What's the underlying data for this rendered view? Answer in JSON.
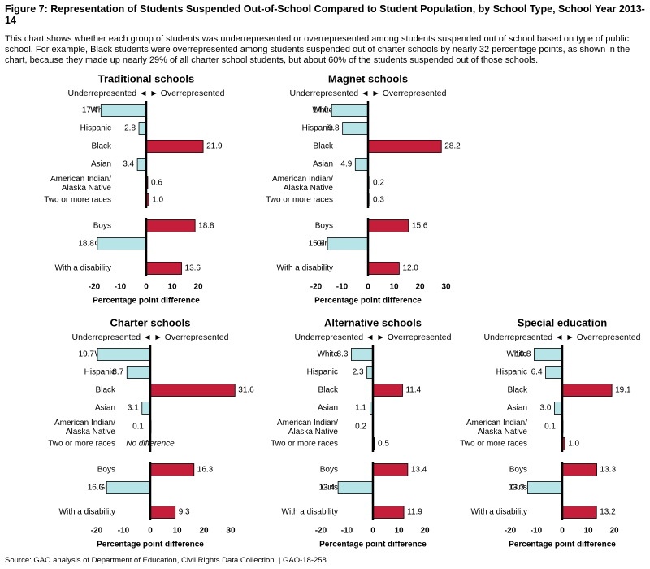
{
  "figure": {
    "title": "Figure 7: Representation of Students Suspended Out-of-School Compared to Student Population, by School Type, School Year 2013-14",
    "description": "This chart shows whether each group of students was underrepresented or overrepresented among students suspended out of school based on type of public school. For example, Black students were overrepresented among students suspended out of charter schools by nearly 32 percentage points, as shown in the chart, because they made up nearly 29% of all charter school students, but about 60% of the students suspended out of those schools.",
    "source": "Source: GAO analysis of Department of Education, Civil Rights Data Collection.  |  GAO-18-258",
    "direction_label": "Underrepresented ◄ ► Overrepresented",
    "colors": {
      "under": "#b7e4e6",
      "over": "#c41e3a",
      "border": "#000000"
    }
  },
  "chart_data": [
    {
      "type": "bar",
      "orientation": "horizontal",
      "title": "Traditional schools",
      "xlabel": "Percentage point difference",
      "xlim": [
        -20,
        20
      ],
      "xticks": [
        -20,
        -10,
        0,
        10,
        20
      ],
      "categories": [
        "White",
        "Hispanic",
        "Black",
        "Asian",
        "American Indian/\nAlaska Native",
        "Two or more races",
        "Boys",
        "Girls",
        "With a disability"
      ],
      "values": [
        -17.4,
        -2.8,
        21.9,
        -3.4,
        0.6,
        1.0,
        18.8,
        -18.8,
        13.6
      ],
      "labels": [
        "17.4",
        "2.8",
        "21.9",
        "3.4",
        "0.6",
        "1.0",
        "18.8",
        "18.8",
        "13.6"
      ]
    },
    {
      "type": "bar",
      "orientation": "horizontal",
      "title": "Magnet schools",
      "xlabel": "Percentage point difference",
      "xlim": [
        -20,
        30
      ],
      "xticks": [
        -20,
        -10,
        0,
        10,
        20,
        30
      ],
      "categories": [
        "White",
        "Hispanic",
        "Black",
        "Asian",
        "American Indian/\nAlaska Native",
        "Two or more races",
        "Boys",
        "Girls",
        "With a disability"
      ],
      "values": [
        -14.0,
        -9.8,
        28.2,
        -4.9,
        0.2,
        0.3,
        15.6,
        -15.6,
        12.0
      ],
      "labels": [
        "14.0",
        "9.8",
        "28.2",
        "4.9",
        "0.2",
        "0.3",
        "15.6",
        "15.6",
        "12.0"
      ]
    },
    {
      "type": "bar",
      "orientation": "horizontal",
      "title": "Charter schools",
      "xlabel": "Percentage point difference",
      "xlim": [
        -20,
        30
      ],
      "xticks": [
        -20,
        -10,
        0,
        10,
        20,
        30
      ],
      "categories": [
        "White",
        "Hispanic",
        "Black",
        "Asian",
        "American Indian/\nAlaska Native",
        "Two or more races",
        "Boys",
        "Girls",
        "With a disability"
      ],
      "values": [
        -19.7,
        -8.7,
        31.6,
        -3.1,
        -0.1,
        0,
        16.3,
        -16.3,
        9.3
      ],
      "labels": [
        "19.7",
        "8.7",
        "31.6",
        "3.1",
        "0.1",
        "No difference",
        "16.3",
        "16.3",
        "9.3"
      ]
    },
    {
      "type": "bar",
      "orientation": "horizontal",
      "title": "Alternative schools",
      "xlabel": "Percentage point difference",
      "xlim": [
        -20,
        20
      ],
      "xticks": [
        -20,
        -10,
        0,
        10,
        20
      ],
      "categories": [
        "White",
        "Hispanic",
        "Black",
        "Asian",
        "American Indian/\nAlaska Native",
        "Two or more races",
        "Boys",
        "Girls",
        "With a disability"
      ],
      "values": [
        -8.3,
        -2.3,
        11.4,
        -1.1,
        -0.2,
        0.5,
        13.4,
        -13.4,
        11.9
      ],
      "labels": [
        "8.3",
        "2.3",
        "11.4",
        "1.1",
        "0.2",
        "0.5",
        "13.4",
        "13.4",
        "11.9"
      ]
    },
    {
      "type": "bar",
      "orientation": "horizontal",
      "title": "Special education",
      "xlabel": "Percentage point difference",
      "xlim": [
        -20,
        20
      ],
      "xticks": [
        -20,
        -10,
        0,
        10,
        20
      ],
      "categories": [
        "White",
        "Hispanic",
        "Black",
        "Asian",
        "American Indian/\nAlaska Native",
        "Two or more races",
        "Boys",
        "Girls",
        "With a disability"
      ],
      "values": [
        -10.8,
        -6.4,
        19.1,
        -3.0,
        -0.1,
        1.0,
        13.3,
        -13.3,
        13.2
      ],
      "labels": [
        "10.8",
        "6.4",
        "19.1",
        "3.0",
        "0.1",
        "1.0",
        "13.3",
        "13.3",
        "13.2"
      ]
    }
  ]
}
